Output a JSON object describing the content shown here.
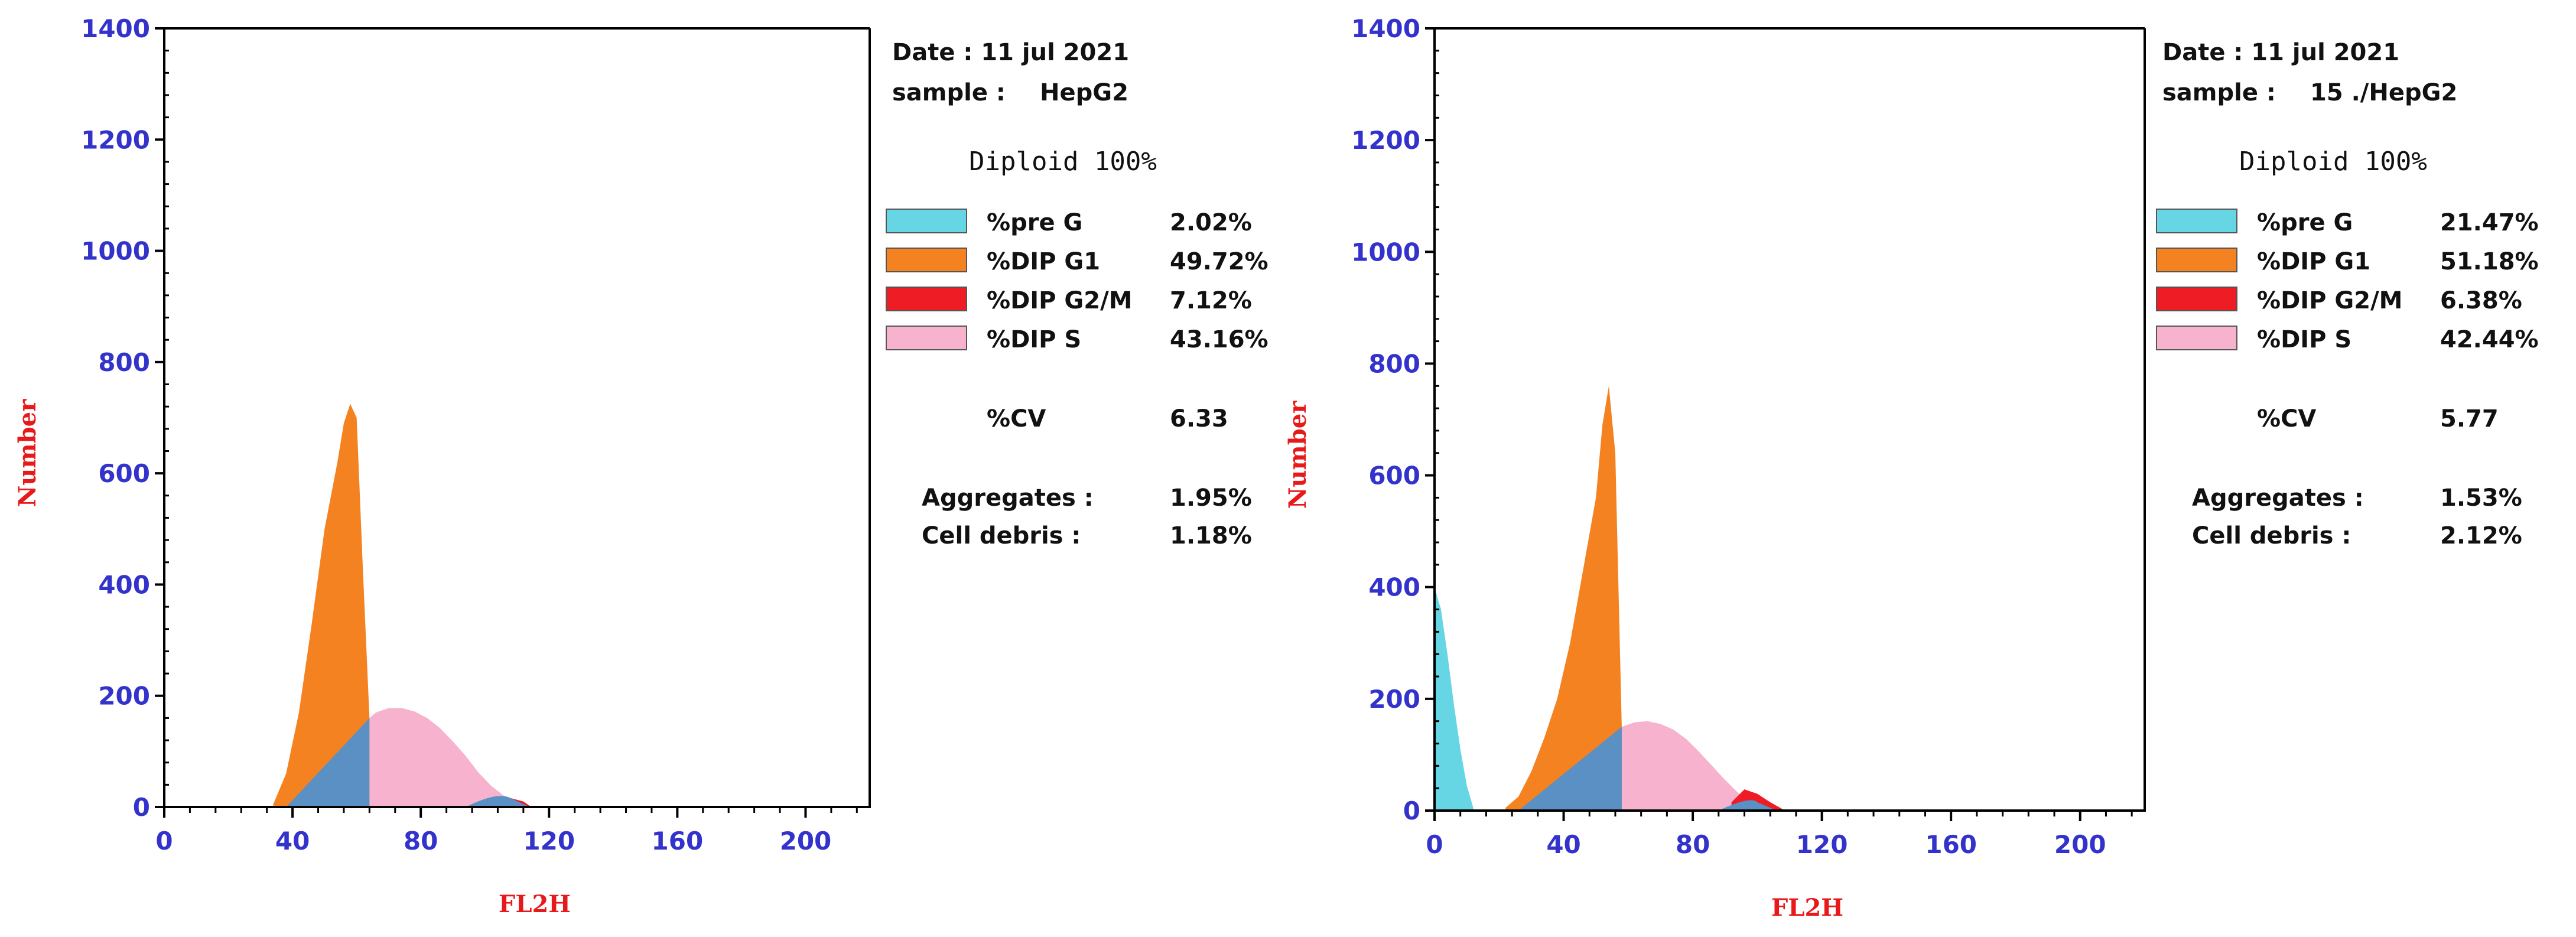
{
  "colors": {
    "pre_g": "#66d6e4",
    "g1": "#f58220",
    "g2m": "#ee1c25",
    "s": "#f7b3cd",
    "s_under": "#5b90c4",
    "axis_tick_label": "#3333cc",
    "axis_title": "#e8191a"
  },
  "chart_data": [
    {
      "type": "histogram",
      "xlabel": "FL2H",
      "ylabel": "Number",
      "xlim": [
        0,
        220
      ],
      "ylim": [
        0,
        1400
      ],
      "xticks": [
        0,
        40,
        80,
        120,
        160,
        200
      ],
      "yticks": [
        0,
        200,
        400,
        600,
        800,
        1000,
        1200,
        1400
      ],
      "xtick_labels": [
        "0",
        "40",
        "80",
        "120",
        "160",
        "200"
      ],
      "ytick_labels": [
        "0",
        "200",
        "400",
        "600",
        "800",
        "1000",
        "1200",
        "1400"
      ],
      "series": [
        {
          "name": "pre G",
          "color": "#66d6e4",
          "x": [],
          "y": []
        },
        {
          "name": "DIP G1",
          "color": "#f58220",
          "x": [
            34,
            38,
            42,
            46,
            50,
            54,
            56,
            58,
            60,
            62,
            64
          ],
          "y": [
            5,
            60,
            170,
            330,
            500,
            620,
            690,
            725,
            700,
            420,
            160
          ]
        },
        {
          "name": "DIP S",
          "color": "#f7b3cd",
          "x": [
            64,
            66,
            70,
            74,
            78,
            82,
            86,
            90,
            94,
            98,
            102,
            106,
            110
          ],
          "y": [
            160,
            170,
            178,
            178,
            172,
            160,
            142,
            118,
            92,
            62,
            38,
            20,
            8
          ]
        },
        {
          "name": "DIP G2/M",
          "color": "#ee1c25",
          "x": [
            104,
            108,
            112,
            114
          ],
          "y": [
            12,
            16,
            10,
            2
          ]
        }
      ],
      "info": {
        "date": "Date : 11 jul 2021",
        "sample_label": "sample :",
        "sample": "HepG2",
        "ploidy": "Diploid 100%",
        "legend": [
          {
            "label": "%pre G",
            "value": "2.02%",
            "color": "#66d6e4"
          },
          {
            "label": "%DIP G1",
            "value": "49.72%",
            "color": "#f58220"
          },
          {
            "label": "%DIP G2/M",
            "value": "7.12%",
            "color": "#ee1c25"
          },
          {
            "label": "%DIP S",
            "value": "43.16%",
            "color": "#f7b3cd"
          }
        ],
        "cv_label": "%CV",
        "cv_value": "6.33",
        "aggregates_label": "Aggregates :",
        "aggregates_value": "1.95%",
        "debris_label": "Cell debris :",
        "debris_value": "1.18%"
      }
    },
    {
      "type": "histogram",
      "xlabel": "FL2H",
      "ylabel": "Number",
      "xlim": [
        0,
        220
      ],
      "ylim": [
        0,
        1400
      ],
      "xticks": [
        0,
        40,
        80,
        120,
        160,
        200
      ],
      "yticks": [
        0,
        200,
        400,
        600,
        800,
        1000,
        1200,
        1400
      ],
      "xtick_labels": [
        "0",
        "40",
        "80",
        "120",
        "160",
        "200"
      ],
      "ytick_labels": [
        "0",
        "200",
        "400",
        "600",
        "800",
        "1000",
        "1200",
        "1400"
      ],
      "series": [
        {
          "name": "pre G",
          "color": "#66d6e4",
          "x": [
            0,
            2,
            4,
            6,
            8,
            10,
            12
          ],
          "y": [
            400,
            360,
            280,
            190,
            110,
            45,
            5
          ]
        },
        {
          "name": "DIP G1",
          "color": "#f58220",
          "x": [
            22,
            26,
            30,
            34,
            38,
            42,
            46,
            50,
            52,
            54,
            56,
            58
          ],
          "y": [
            5,
            25,
            70,
            130,
            200,
            300,
            430,
            560,
            690,
            760,
            640,
            150
          ]
        },
        {
          "name": "DIP S",
          "color": "#f7b3cd",
          "x": [
            58,
            62,
            66,
            70,
            74,
            78,
            82,
            86,
            90,
            94,
            98,
            102
          ],
          "y": [
            150,
            158,
            160,
            155,
            145,
            128,
            105,
            80,
            55,
            32,
            15,
            4
          ]
        },
        {
          "name": "DIP G2/M",
          "color": "#ee1c25",
          "x": [
            92,
            96,
            100,
            104,
            108
          ],
          "y": [
            15,
            38,
            30,
            15,
            2
          ]
        }
      ],
      "info": {
        "date": "Date : 11 jul 2021",
        "sample_label": "sample :",
        "sample": "15 ./HepG2",
        "ploidy": "Diploid 100%",
        "legend": [
          {
            "label": "%pre G",
            "value": "21.47%",
            "color": "#66d6e4"
          },
          {
            "label": "%DIP G1",
            "value": "51.18%",
            "color": "#f58220"
          },
          {
            "label": "%DIP G2/M",
            "value": "6.38%",
            "color": "#ee1c25"
          },
          {
            "label": "%DIP S",
            "value": "42.44%",
            "color": "#f7b3cd"
          }
        ],
        "cv_label": "%CV",
        "cv_value": "5.77",
        "aggregates_label": "Aggregates :",
        "aggregates_value": "1.53%",
        "debris_label": "Cell debris :",
        "debris_value": "2.12%"
      }
    }
  ]
}
